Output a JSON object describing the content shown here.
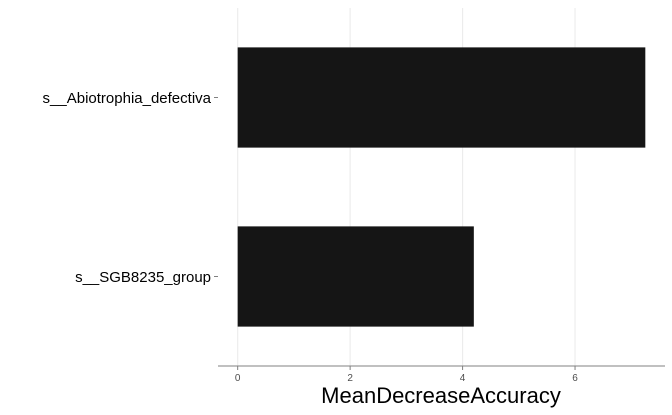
{
  "chart_data": {
    "type": "bar",
    "orientation": "horizontal",
    "categories": [
      "s__Abiotrophia_defectiva",
      "s__SGB8235_group"
    ],
    "values": [
      7.25,
      4.2
    ],
    "title": "",
    "xlabel": "MeanDecreaseAccuracy",
    "ylabel": "",
    "xlim": [
      -0.35,
      7.6
    ],
    "xticks": [
      0,
      2,
      4,
      6
    ],
    "xtick_labels": [
      "0",
      "2",
      "4",
      "6"
    ],
    "grid": "vertical-major",
    "legend": "none",
    "bar_color": "#151515",
    "grid_color": "#ebebeb",
    "axis_color": "#808080"
  }
}
